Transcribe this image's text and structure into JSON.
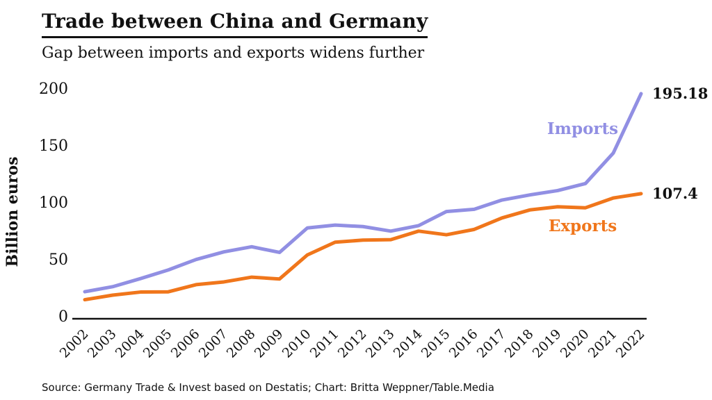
{
  "header": {
    "title": "Trade between China and Germany",
    "subtitle": "Gap between imports and exports widens further"
  },
  "chart_data": {
    "type": "line",
    "x": [
      2002,
      2003,
      2004,
      2005,
      2006,
      2007,
      2008,
      2009,
      2010,
      2011,
      2012,
      2013,
      2014,
      2015,
      2016,
      2017,
      2018,
      2019,
      2020,
      2021,
      2022
    ],
    "series": [
      {
        "name": "Imports",
        "color": "#918fe3",
        "values": [
          21.3,
          25.7,
          32.8,
          40.4,
          49.6,
          56.3,
          60.8,
          55.8,
          77.3,
          79.8,
          78.5,
          74.5,
          79.3,
          91.7,
          93.7,
          101.8,
          106.3,
          110.1,
          116.3,
          143.0,
          195.18
        ],
        "end_label": "195.18"
      },
      {
        "name": "Exports",
        "color": "#f0761b",
        "values": [
          14.3,
          18.3,
          21.0,
          21.2,
          27.5,
          29.9,
          34.1,
          32.5,
          53.6,
          64.8,
          66.6,
          67.0,
          74.5,
          71.3,
          76.0,
          86.1,
          93.1,
          95.9,
          95.0,
          103.6,
          107.4
        ],
        "end_label": "107.4"
      }
    ],
    "ylabel": "Billion euros",
    "yticks": [
      0,
      50,
      100,
      150,
      200
    ],
    "ylim": [
      0,
      200
    ],
    "grid": false,
    "legend_position": "inline-right",
    "axis_color": "#111111"
  },
  "source": "Source: Germany Trade & Invest based on Destatis; Chart: Britta Weppner/Table.Media"
}
